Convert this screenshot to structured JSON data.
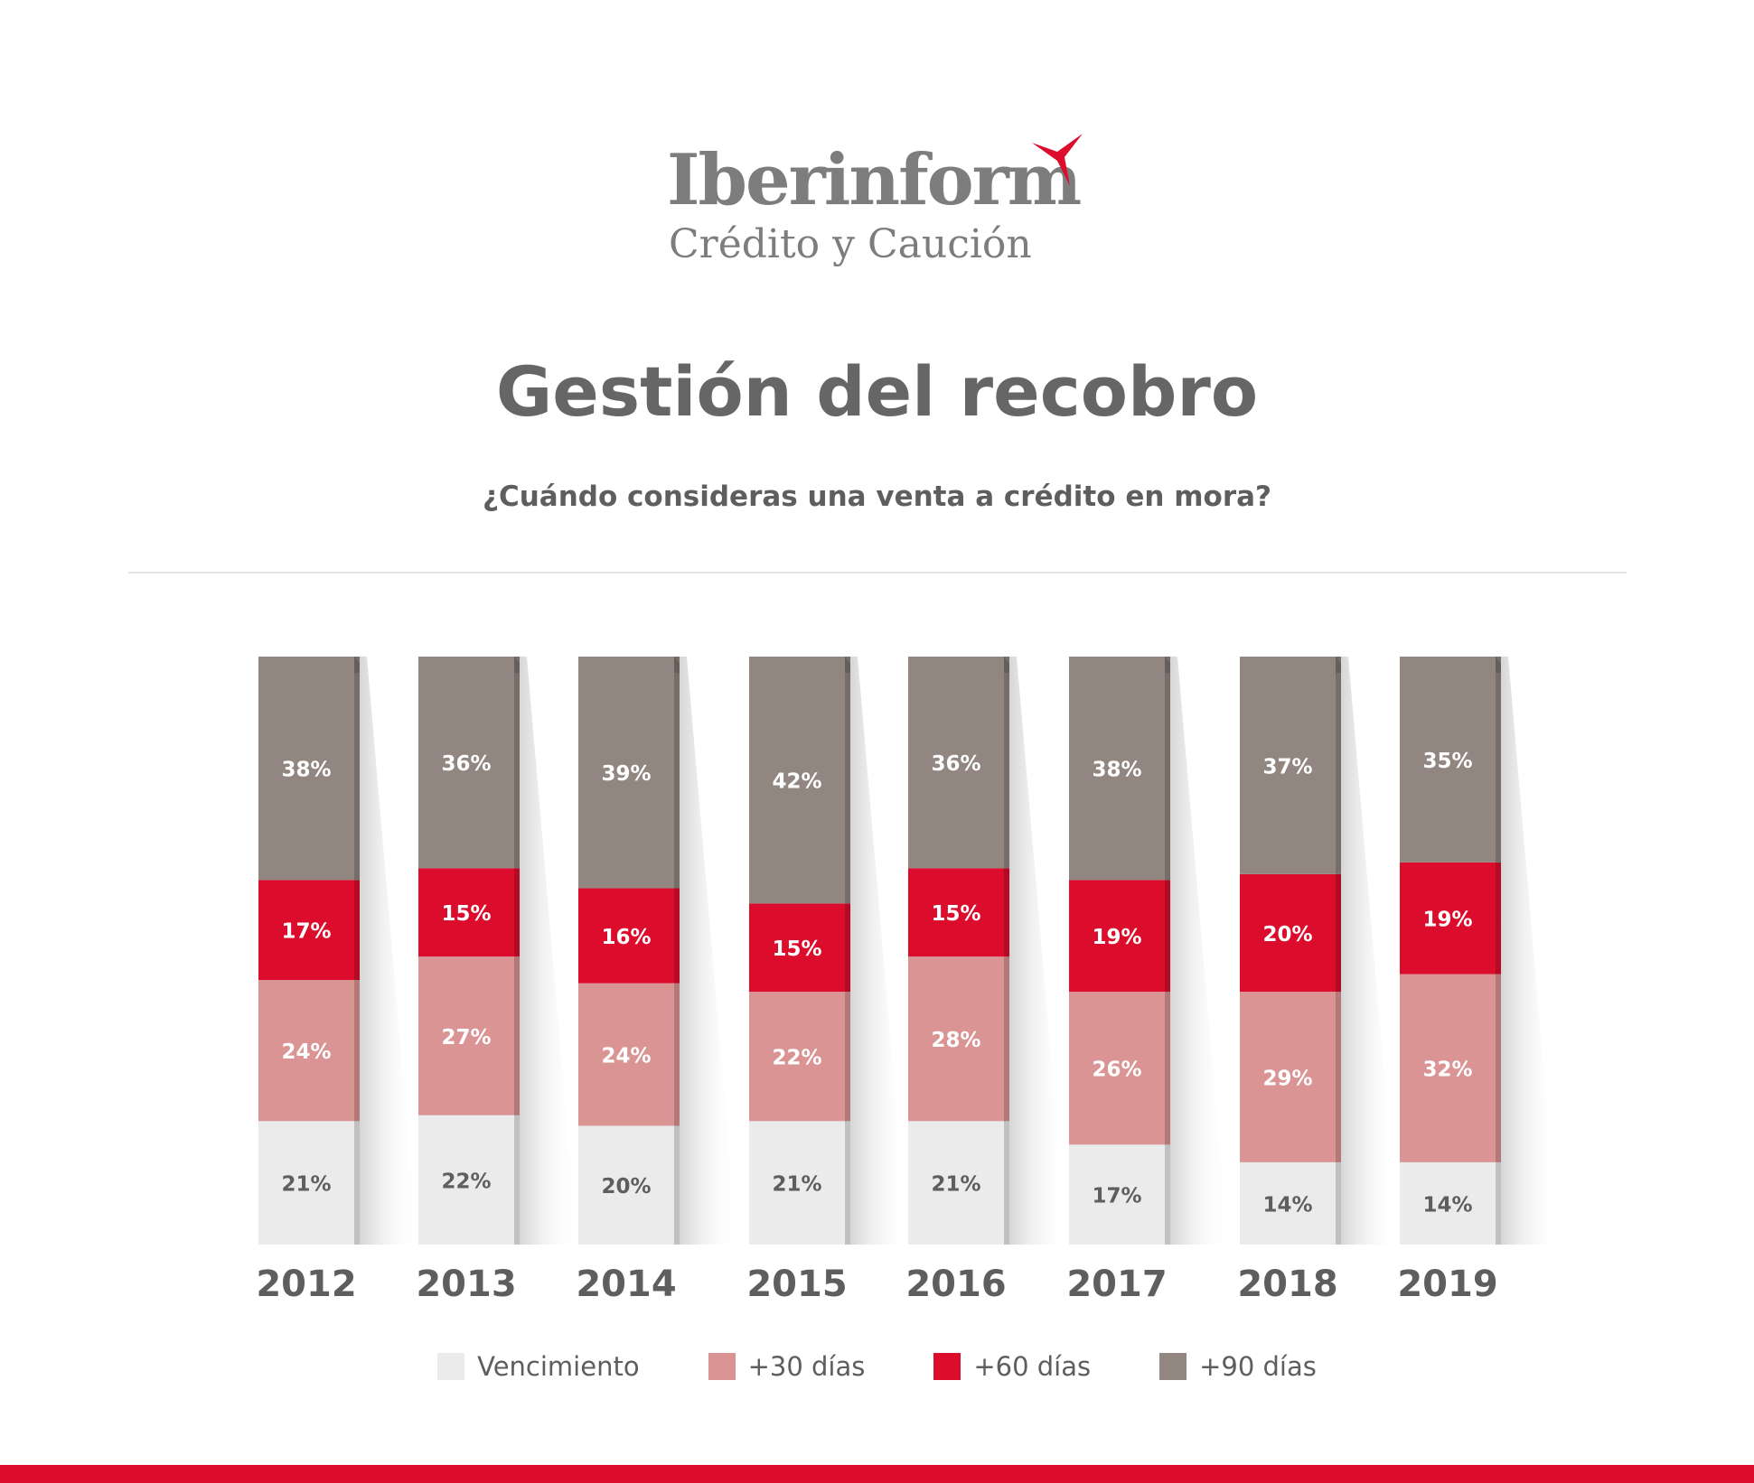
{
  "brand": {
    "name": "Iberinform",
    "subtitle": "Crédito y Caución",
    "accent_color": "#dc0c2c",
    "mark_icon": "propeller-mark-icon"
  },
  "chart_data": {
    "type": "bar",
    "stacked": true,
    "title": "Gestión del recobro",
    "subtitle": "¿Cuándo consideras una venta a crédito en mora?",
    "categories": [
      "2012",
      "2013",
      "2014",
      "2015",
      "2016",
      "2017",
      "2018",
      "2019"
    ],
    "series": [
      {
        "name": "Vencimiento",
        "color": "#ebebeb",
        "label_color": "#5e5e5e",
        "values": [
          21,
          22,
          20,
          21,
          21,
          17,
          14,
          14
        ]
      },
      {
        "name": "+30 días",
        "color": "#da9494",
        "label_color": "#ffffff",
        "values": [
          24,
          27,
          24,
          22,
          28,
          26,
          29,
          32
        ]
      },
      {
        "name": "+60 días",
        "color": "#dc0c2c",
        "label_color": "#ffffff",
        "values": [
          17,
          15,
          16,
          15,
          15,
          19,
          20,
          19
        ]
      },
      {
        "name": "+90 días",
        "color": "#928680",
        "label_color": "#ffffff",
        "values": [
          38,
          36,
          39,
          42,
          36,
          38,
          37,
          35
        ]
      }
    ],
    "value_suffix": "%",
    "legend_position": "bottom",
    "grid": false
  }
}
